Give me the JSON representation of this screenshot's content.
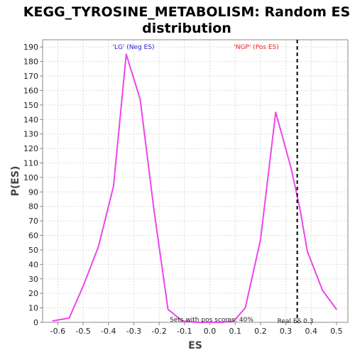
{
  "chart_data": {
    "type": "line",
    "title_line1": "KEGG_TYROSINE_METABOLISM: Random ES",
    "title_line2": "distribution",
    "xlabel": "ES",
    "ylabel": "P(ES)",
    "xlim": [
      -0.66,
      0.545
    ],
    "ylim": [
      0,
      195
    ],
    "x_ticks": [
      "-0.6",
      "-0.5",
      "-0.4",
      "-0.3",
      "-0.2",
      "-0.1",
      "0.0",
      "0.1",
      "0.2",
      "0.3",
      "0.4",
      "0.5"
    ],
    "y_ticks": [
      "0",
      "10",
      "20",
      "30",
      "40",
      "50",
      "60",
      "70",
      "80",
      "90",
      "100",
      "110",
      "120",
      "130",
      "140",
      "150",
      "160",
      "170",
      "180",
      "190"
    ],
    "grid": true,
    "series": [
      {
        "color": "#ee44ee",
        "x": [
          -0.62,
          -0.555,
          -0.5,
          -0.44,
          -0.38,
          -0.33,
          -0.275,
          -0.22,
          -0.165,
          -0.11,
          -0.05,
          0.0,
          0.05,
          0.095,
          0.14,
          0.2,
          0.26,
          0.32,
          0.355,
          0.385,
          0.445,
          0.5
        ],
        "y": [
          1,
          3,
          25,
          52,
          94,
          185,
          154,
          77,
          9,
          1,
          0,
          0,
          0,
          1,
          10,
          57,
          145,
          107,
          79,
          49,
          22,
          9
        ]
      }
    ],
    "real_es": {
      "x": 0.345,
      "color": "#000000"
    },
    "annotations": {
      "neg_label": "'LG' (Neg ES)",
      "neg_color": "#2222cc",
      "pos_label": "'NGP' (Pos ES)",
      "pos_color": "#ee2222",
      "pos_sets": "Sets with pos scores: 40%",
      "real_es_label": "Real ES 0.3"
    }
  }
}
